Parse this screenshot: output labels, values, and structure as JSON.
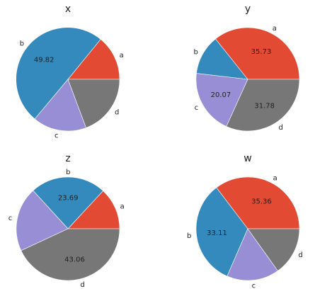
{
  "colors": {
    "a": "#E24A33",
    "b": "#348ABD",
    "c": "#988ED5",
    "d": "#777777",
    "edge": "#ffffff"
  },
  "chart_data": [
    {
      "type": "pie",
      "title": "x",
      "categories": [
        "a",
        "b",
        "c",
        "d"
      ],
      "values": [
        14.1,
        49.82,
        16.8,
        19.3
      ],
      "shown_labels": [
        "",
        "49.82",
        "",
        ""
      ]
    },
    {
      "type": "pie",
      "title": "y",
      "categories": [
        "a",
        "b",
        "c",
        "d"
      ],
      "values": [
        35.73,
        12.42,
        20.07,
        31.78
      ],
      "shown_labels": [
        "35.73",
        "",
        "20.07",
        "31.78"
      ]
    },
    {
      "type": "pie",
      "title": "z",
      "categories": [
        "a",
        "b",
        "c",
        "d"
      ],
      "values": [
        13.1,
        23.69,
        20.15,
        43.06
      ],
      "shown_labels": [
        "",
        "23.69",
        "",
        "43.06"
      ]
    },
    {
      "type": "pie",
      "title": "w",
      "categories": [
        "a",
        "b",
        "c",
        "d"
      ],
      "values": [
        35.36,
        33.11,
        16.4,
        15.13
      ],
      "shown_labels": [
        "35.36",
        "33.11",
        "",
        ""
      ]
    }
  ]
}
